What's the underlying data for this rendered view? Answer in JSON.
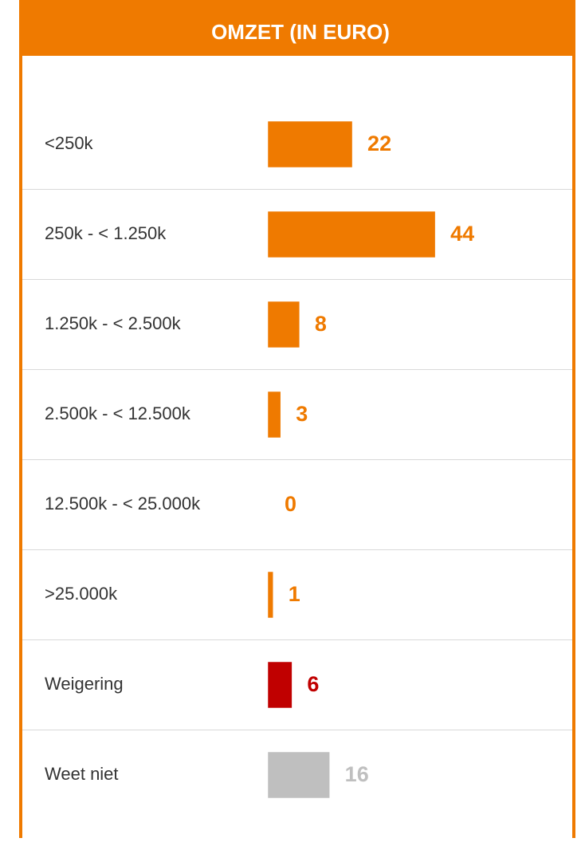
{
  "chart_data": {
    "type": "bar",
    "orientation": "horizontal",
    "title": "OMZET (IN EURO)",
    "categories": [
      "<250k",
      "250k - < 1.250k",
      "1.250k - < 2.500k",
      "2.500k - < 12.500k",
      "12.500k - < 25.000k",
      ">25.000k",
      "Weigering",
      "Weet niet"
    ],
    "values": [
      22,
      44,
      8,
      3,
      0,
      1,
      6,
      16
    ],
    "colors": [
      "#ef7a00",
      "#ef7a00",
      "#ef7a00",
      "#ef7a00",
      "#ef7a00",
      "#ef7a00",
      "#c00000",
      "#bfbfbf"
    ]
  }
}
